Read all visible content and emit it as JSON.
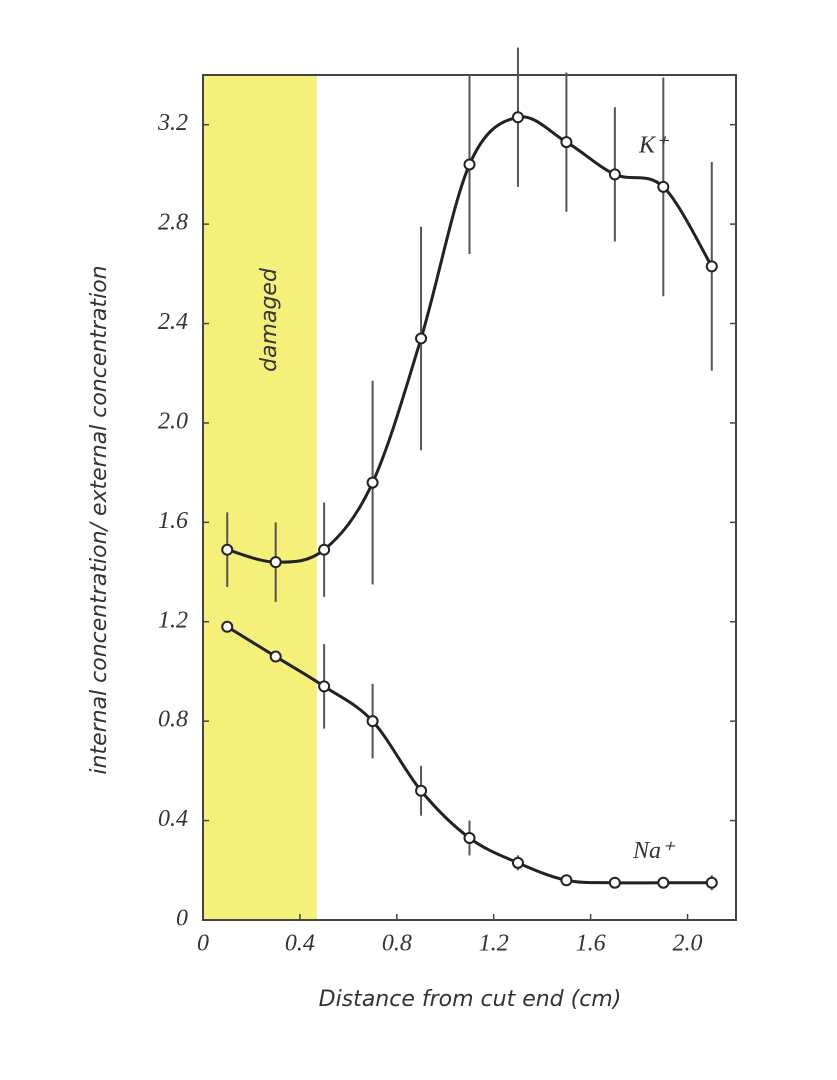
{
  "chart_data": {
    "type": "scatter",
    "x_label": "Distance from cut end (cm)",
    "y_label": "internal concentration/ external concentration",
    "annotations": [
      {
        "text": "damaged",
        "span": [
          0,
          0.47
        ],
        "color": "#f5f07a"
      }
    ],
    "x": [
      0.1,
      0.3,
      0.5,
      0.7,
      0.9,
      1.1,
      1.3,
      1.5,
      1.7,
      1.9,
      2.1
    ],
    "series": [
      {
        "name": "K⁺",
        "color": "#222222",
        "values": [
          1.49,
          1.44,
          1.49,
          1.76,
          2.34,
          3.04,
          3.23,
          3.13,
          3.0,
          2.95,
          2.63
        ],
        "errors": [
          0.15,
          0.16,
          0.19,
          0.41,
          0.45,
          0.36,
          0.28,
          0.28,
          0.27,
          0.44,
          0.42
        ]
      },
      {
        "name": "Na⁺",
        "color": "#222222",
        "values": [
          1.18,
          1.06,
          0.94,
          0.8,
          0.52,
          0.33,
          0.23,
          0.16,
          0.15,
          0.15,
          0.15
        ],
        "errors": [
          0.02,
          0.02,
          0.17,
          0.15,
          0.1,
          0.07,
          0.03,
          0.02,
          0.02,
          0.02,
          0.03
        ]
      }
    ],
    "xlim": [
      0,
      2.2
    ],
    "ylim": [
      0,
      3.4
    ],
    "xticks": [
      0,
      0.4,
      0.8,
      1.2,
      1.6,
      {
        "value": 2,
        "label": "2.0"
      }
    ],
    "yticks": [
      0,
      0.4,
      0.8,
      1.2,
      1.6,
      {
        "value": 2,
        "label": "2.0"
      },
      2.4,
      2.8,
      3.2
    ]
  }
}
